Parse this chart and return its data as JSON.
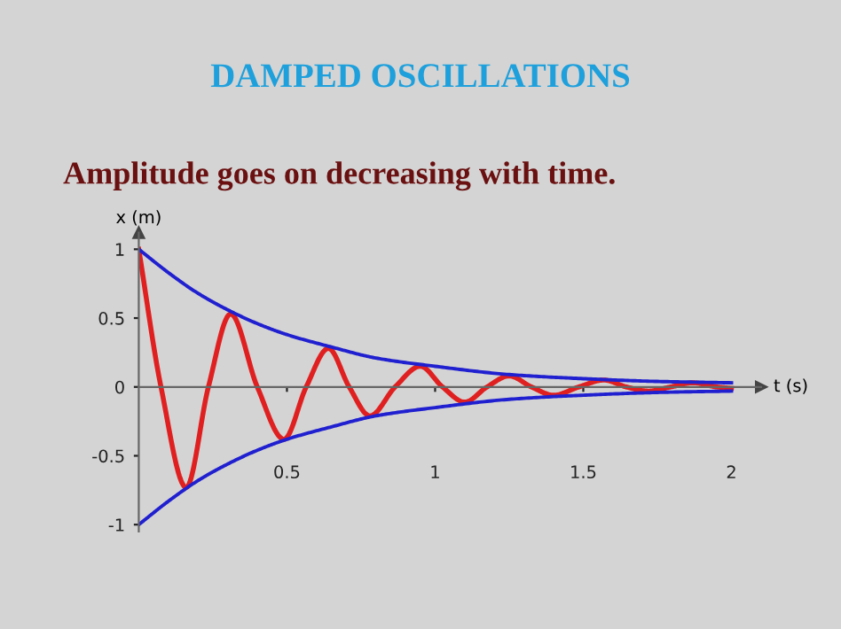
{
  "chart_data": {
    "type": "line",
    "title": "DAMPED OSCILLATIONS",
    "subtitle": "Amplitude goes on decreasing with time.",
    "xlabel": "t (s)",
    "ylabel": "x (m)",
    "xlim": [
      0,
      2.1
    ],
    "ylim": [
      -1.05,
      1.12
    ],
    "xticks": [
      0.5,
      1,
      1.5,
      2
    ],
    "yticks": [
      -1,
      -0.5,
      0,
      0.5,
      1
    ],
    "legend": false,
    "marker": "none",
    "line_style": "solid",
    "series": [
      {
        "color": "#e02020",
        "x": [
          0,
          0.075,
          0.16,
          0.235,
          0.31,
          0.4,
          0.49,
          0.565,
          0.64,
          0.71,
          0.78,
          0.865,
          0.95,
          1.025,
          1.1,
          1.175,
          1.25,
          1.325,
          1.4,
          1.485,
          1.57,
          1.645,
          1.72,
          1.795,
          1.87,
          1.95,
          2
        ],
        "values": [
          1,
          0,
          -0.73,
          0,
          0.53,
          0,
          -0.38,
          0,
          0.28,
          0,
          -0.21,
          0,
          0.15,
          0,
          -0.11,
          0,
          0.08,
          0,
          -0.06,
          0,
          0.05,
          0,
          -0.03,
          0,
          0.03,
          0,
          -0.01
        ]
      },
      {
        "color": "#2020d0",
        "x": [
          0,
          0.1,
          0.2,
          0.3,
          0.4,
          0.5,
          0.65,
          0.8,
          1.0,
          1.25,
          1.5,
          1.75,
          2
        ],
        "values": [
          1,
          0.83,
          0.68,
          0.56,
          0.46,
          0.38,
          0.29,
          0.21,
          0.15,
          0.09,
          0.06,
          0.04,
          0.03
        ]
      },
      {
        "color": "#2020d0",
        "x": [
          0,
          0.1,
          0.2,
          0.3,
          0.4,
          0.5,
          0.65,
          0.8,
          1.0,
          1.25,
          1.5,
          1.75,
          2
        ],
        "values": [
          -1,
          -0.83,
          -0.68,
          -0.56,
          -0.46,
          -0.38,
          -0.29,
          -0.21,
          -0.15,
          -0.09,
          -0.06,
          -0.04,
          -0.03
        ]
      }
    ]
  }
}
